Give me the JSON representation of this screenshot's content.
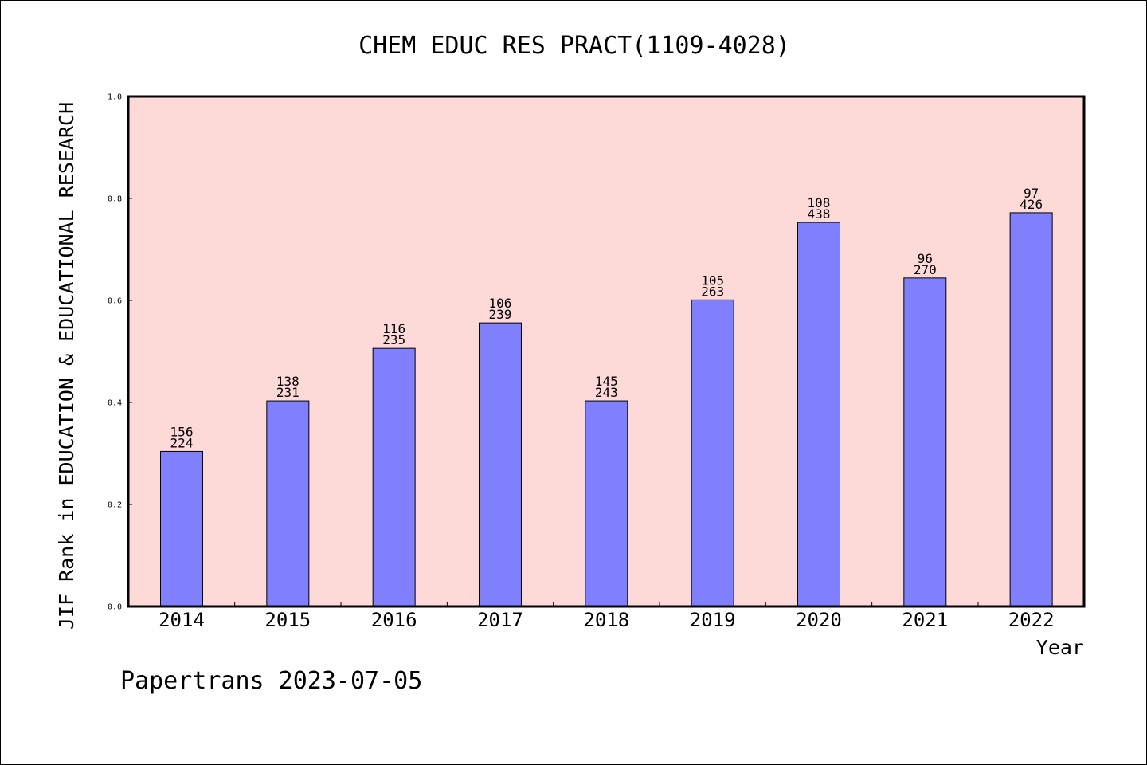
{
  "colors": {
    "plot_background": "#fdd9d7",
    "bar_fill": "#8080ff",
    "bar_stroke": "#000000",
    "axis": "#000000",
    "text": "#000000"
  },
  "footer": "Papertrans 2023-07-05",
  "chart_data": {
    "type": "bar",
    "title": "CHEM EDUC RES PRACT(1109-4028)",
    "xlabel": "Year",
    "ylabel": "JIF Rank in EDUCATION & EDUCATIONAL RESEARCH",
    "ylim": [
      0,
      1
    ],
    "yticks": [
      "0.0",
      "0.2",
      "0.4",
      "0.6",
      "0.8",
      "1.0"
    ],
    "categories": [
      "2014",
      "2015",
      "2016",
      "2017",
      "2018",
      "2019",
      "2020",
      "2021",
      "2022"
    ],
    "values": [
      0.304,
      0.403,
      0.506,
      0.556,
      0.403,
      0.601,
      0.753,
      0.644,
      0.772
    ],
    "rank": [
      "156",
      "138",
      "116",
      "106",
      "145",
      "105",
      "108",
      "96",
      "97"
    ],
    "total": [
      "224",
      "231",
      "235",
      "239",
      "243",
      "263",
      "438",
      "270",
      "426"
    ],
    "grid": false,
    "legend": "none"
  }
}
